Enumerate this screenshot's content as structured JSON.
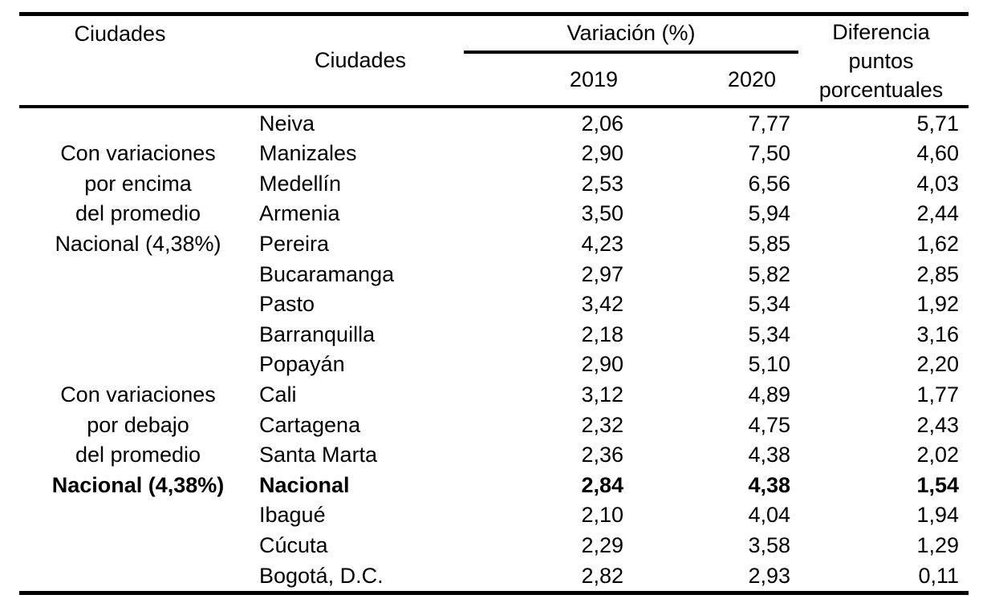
{
  "table": {
    "header": {
      "col_group": "Ciudades",
      "col_city": "Ciudades",
      "variation_group": "Variación (%)",
      "year_2019": "2019",
      "year_2020": "2020",
      "diff_lines": [
        "Diferencia",
        "puntos",
        "porcentuales"
      ]
    },
    "group_above_label": "Con variaciones por encima del promedio Nacional (4,38%)",
    "group_below_label": "Con variaciones por debajo del promedio Nacional (4,38%)",
    "national_average": "4,38%",
    "rows": [
      {
        "label": "",
        "city": "Neiva",
        "v2019": "2,06",
        "v2020": "7,77",
        "diff": "5,71",
        "bold": false
      },
      {
        "label": "Con variaciones",
        "city": "Manizales",
        "v2019": "2,90",
        "v2020": "7,50",
        "diff": "4,60",
        "bold": false
      },
      {
        "label": "por encima",
        "city": "Medellín",
        "v2019": "2,53",
        "v2020": "6,56",
        "diff": "4,03",
        "bold": false
      },
      {
        "label": "del promedio",
        "city": "Armenia",
        "v2019": "3,50",
        "v2020": "5,94",
        "diff": "2,44",
        "bold": false
      },
      {
        "label": "Nacional (4,38%)",
        "city": "Pereira",
        "v2019": "4,23",
        "v2020": "5,85",
        "diff": "1,62",
        "bold": false
      },
      {
        "label": "",
        "city": "Bucaramanga",
        "v2019": "2,97",
        "v2020": "5,82",
        "diff": "2,85",
        "bold": false
      },
      {
        "label": "",
        "city": "Pasto",
        "v2019": "3,42",
        "v2020": "5,34",
        "diff": "1,92",
        "bold": false
      },
      {
        "label": "",
        "city": "Barranquilla",
        "v2019": "2,18",
        "v2020": "5,34",
        "diff": "3,16",
        "bold": false
      },
      {
        "label": "",
        "city": "Popayán",
        "v2019": "2,90",
        "v2020": "5,10",
        "diff": "2,20",
        "bold": false
      },
      {
        "label": "Con variaciones",
        "city": "Cali",
        "v2019": "3,12",
        "v2020": "4,89",
        "diff": "1,77",
        "bold": false
      },
      {
        "label": "por debajo",
        "city": "Cartagena",
        "v2019": "2,32",
        "v2020": "4,75",
        "diff": "2,43",
        "bold": false
      },
      {
        "label": "del promedio",
        "city": "Santa Marta",
        "v2019": "2,36",
        "v2020": "4,38",
        "diff": "2,02",
        "bold": false
      },
      {
        "label": "Nacional (4,38%)",
        "city": "Nacional",
        "v2019": "2,84",
        "v2020": "4,38",
        "diff": "1,54",
        "bold": true
      },
      {
        "label": "",
        "city": "Ibagué",
        "v2019": "2,10",
        "v2020": "4,04",
        "diff": "1,94",
        "bold": false
      },
      {
        "label": "",
        "city": "Cúcuta",
        "v2019": "2,29",
        "v2020": "3,58",
        "diff": "1,29",
        "bold": false
      },
      {
        "label": "",
        "city": "Bogotá, D.C.",
        "v2019": "2,82",
        "v2020": "2,93",
        "diff": "0,11",
        "bold": false
      }
    ]
  }
}
